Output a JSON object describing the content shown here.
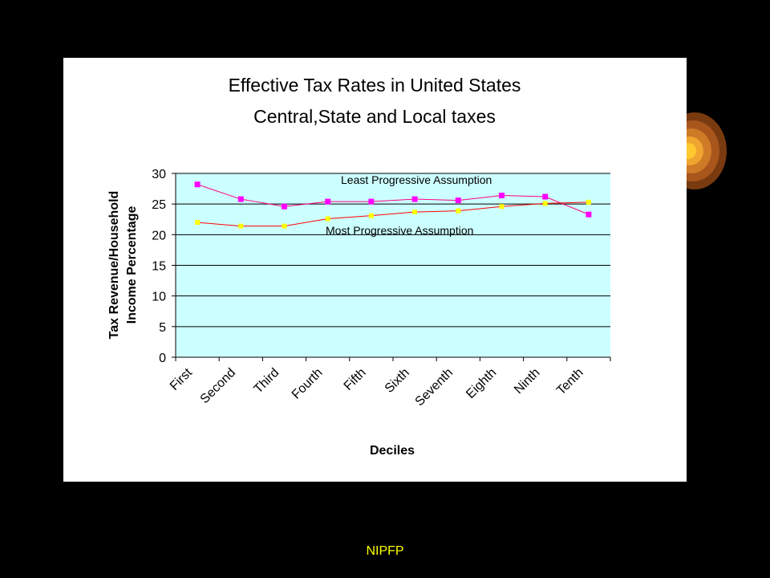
{
  "slide": {
    "footer": "NIPFP"
  },
  "colors": {
    "background": "#000000",
    "plot_area": "#ccffff",
    "least_series": "#ff00ff",
    "least_line": "#ff0080",
    "most_series": "#ffff00",
    "most_line": "#ff0000",
    "footer_text": "#ffff00"
  },
  "chart_data": {
    "type": "line",
    "title": "Effective Tax Rates in United States",
    "subtitle": "Central,State and Local taxes",
    "xlabel": "Deciles",
    "ylabel_line1": "Tax Revenue/Household",
    "ylabel_line2": "Income Percentage",
    "ylim": [
      0,
      30
    ],
    "yticks": [
      0,
      5,
      10,
      15,
      20,
      25,
      30
    ],
    "grid": true,
    "categories": [
      "First",
      "Second",
      "Third",
      "Fourth",
      "Fifth",
      "Sixth",
      "Seventh",
      "Eighth",
      "Ninth",
      "Tenth"
    ],
    "series": [
      {
        "name": "Least Progressive Assumption",
        "values": [
          28.2,
          25.8,
          24.6,
          25.4,
          25.4,
          25.8,
          25.6,
          26.4,
          26.2,
          23.3
        ]
      },
      {
        "name": "Most Progressive Assumption",
        "values": [
          22.0,
          21.4,
          21.4,
          22.6,
          23.1,
          23.7,
          23.9,
          24.6,
          25.1,
          25.3
        ]
      }
    ]
  }
}
